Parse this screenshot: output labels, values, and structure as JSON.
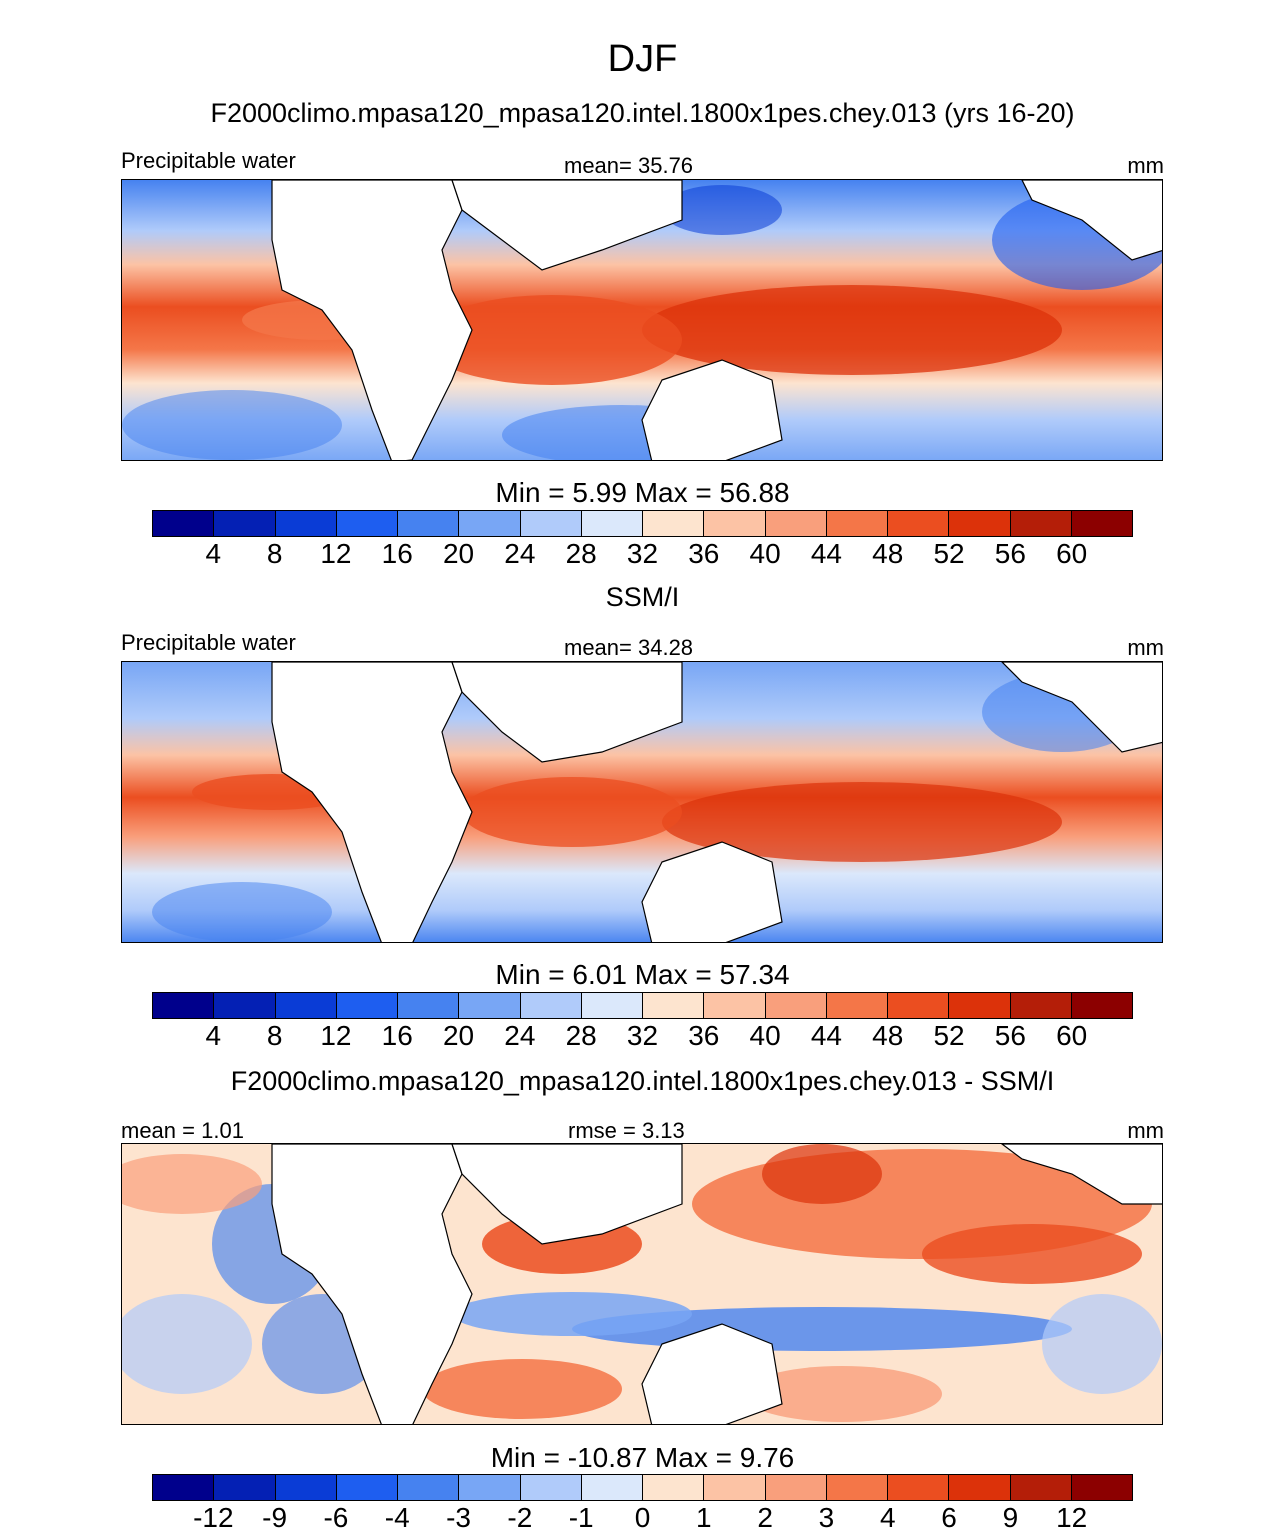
{
  "figure": {
    "season": "DJF",
    "panels": [
      {
        "title": "F2000climo.mpasa120_mpasa120.intel.1800x1pes.chey.013 (yrs 16-20)",
        "left_label": "Precipitable water",
        "center_label": "mean=  35.76",
        "right_label": "mm",
        "minmax": "Min =   5.99 Max =  56.88",
        "colorbar": "abs"
      },
      {
        "title": "SSM/I",
        "left_label": "Precipitable water",
        "center_label": "mean=  34.28",
        "right_label": "mm",
        "minmax": "Min =   6.01 Max =  57.34",
        "colorbar": "abs"
      },
      {
        "title": "F2000climo.mpasa120_mpasa120.intel.1800x1pes.chey.013 - SSM/I",
        "left_label": "mean =   1.01",
        "center_label": "rmse =   3.13",
        "right_label": "mm",
        "minmax": "Min = -10.87 Max =   9.76",
        "colorbar": "diff"
      }
    ],
    "colorbars": {
      "abs": {
        "ticks": [
          "4",
          "8",
          "12",
          "16",
          "20",
          "24",
          "28",
          "32",
          "36",
          "40",
          "44",
          "48",
          "52",
          "56",
          "60"
        ],
        "colors": [
          "#00008c",
          "#0420b4",
          "#0a3cd6",
          "#1e5ef0",
          "#4682f0",
          "#78a6f5",
          "#b0cbfa",
          "#dbe8fb",
          "#fde4cf",
          "#fcc3a5",
          "#f99f7c",
          "#f47648",
          "#eb4e20",
          "#dc320a",
          "#b41e08",
          "#8c0000"
        ]
      },
      "diff": {
        "ticks": [
          "-12",
          "-9",
          "-6",
          "-4",
          "-3",
          "-2",
          "-1",
          "0",
          "1",
          "2",
          "3",
          "4",
          "6",
          "9",
          "12"
        ],
        "colors": [
          "#00008c",
          "#0420b4",
          "#0a3cd6",
          "#1e5ef0",
          "#4682f0",
          "#78a6f5",
          "#b0cbfa",
          "#dbe8fb",
          "#fde4cf",
          "#fcc3a5",
          "#f99f7c",
          "#f47648",
          "#eb4e20",
          "#dc320a",
          "#b41e08",
          "#8c0000"
        ]
      }
    }
  }
}
